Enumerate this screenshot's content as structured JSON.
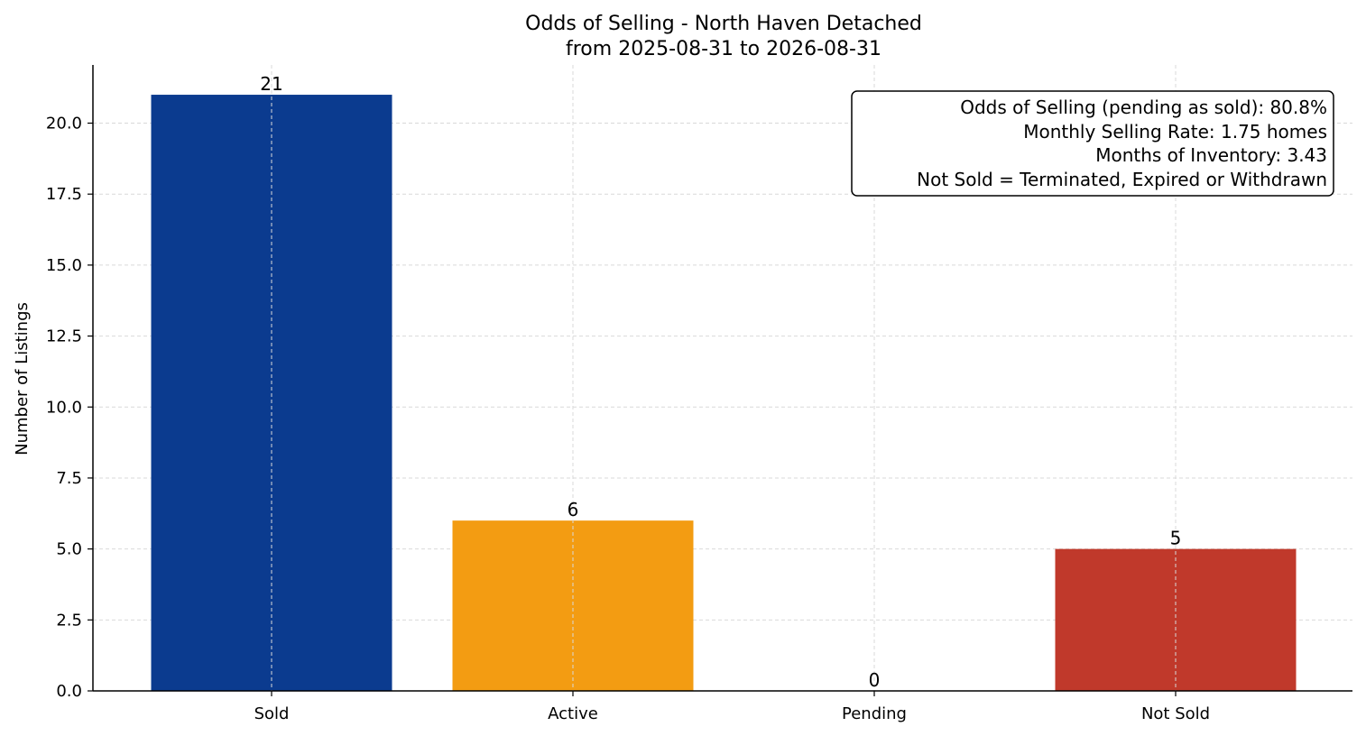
{
  "chart_data": {
    "type": "bar",
    "title": "Odds of Selling - North Haven Detached",
    "subtitle": "from 2025-08-31 to 2026-08-31",
    "xlabel": "",
    "ylabel": "Number of Listings",
    "categories": [
      "Sold",
      "Active",
      "Pending",
      "Not Sold"
    ],
    "values": [
      21,
      6,
      0,
      5
    ],
    "colors": [
      "#0b3b8f",
      "#f39c12",
      "#7f7f7f",
      "#c0392b"
    ],
    "ylim": [
      0,
      22.05
    ],
    "yticks": [
      0.0,
      2.5,
      5.0,
      7.5,
      10.0,
      12.5,
      15.0,
      17.5,
      20.0
    ],
    "ytick_labels": [
      "0.0",
      "2.5",
      "5.0",
      "7.5",
      "10.0",
      "12.5",
      "15.0",
      "17.5",
      "20.0"
    ],
    "grid": true,
    "annotations": [
      "Odds of Selling (pending as sold): 80.8%",
      "Monthly Selling Rate: 1.75 homes",
      "Months of Inventory: 3.43",
      "Not Sold = Terminated, Expired or Withdrawn"
    ]
  }
}
